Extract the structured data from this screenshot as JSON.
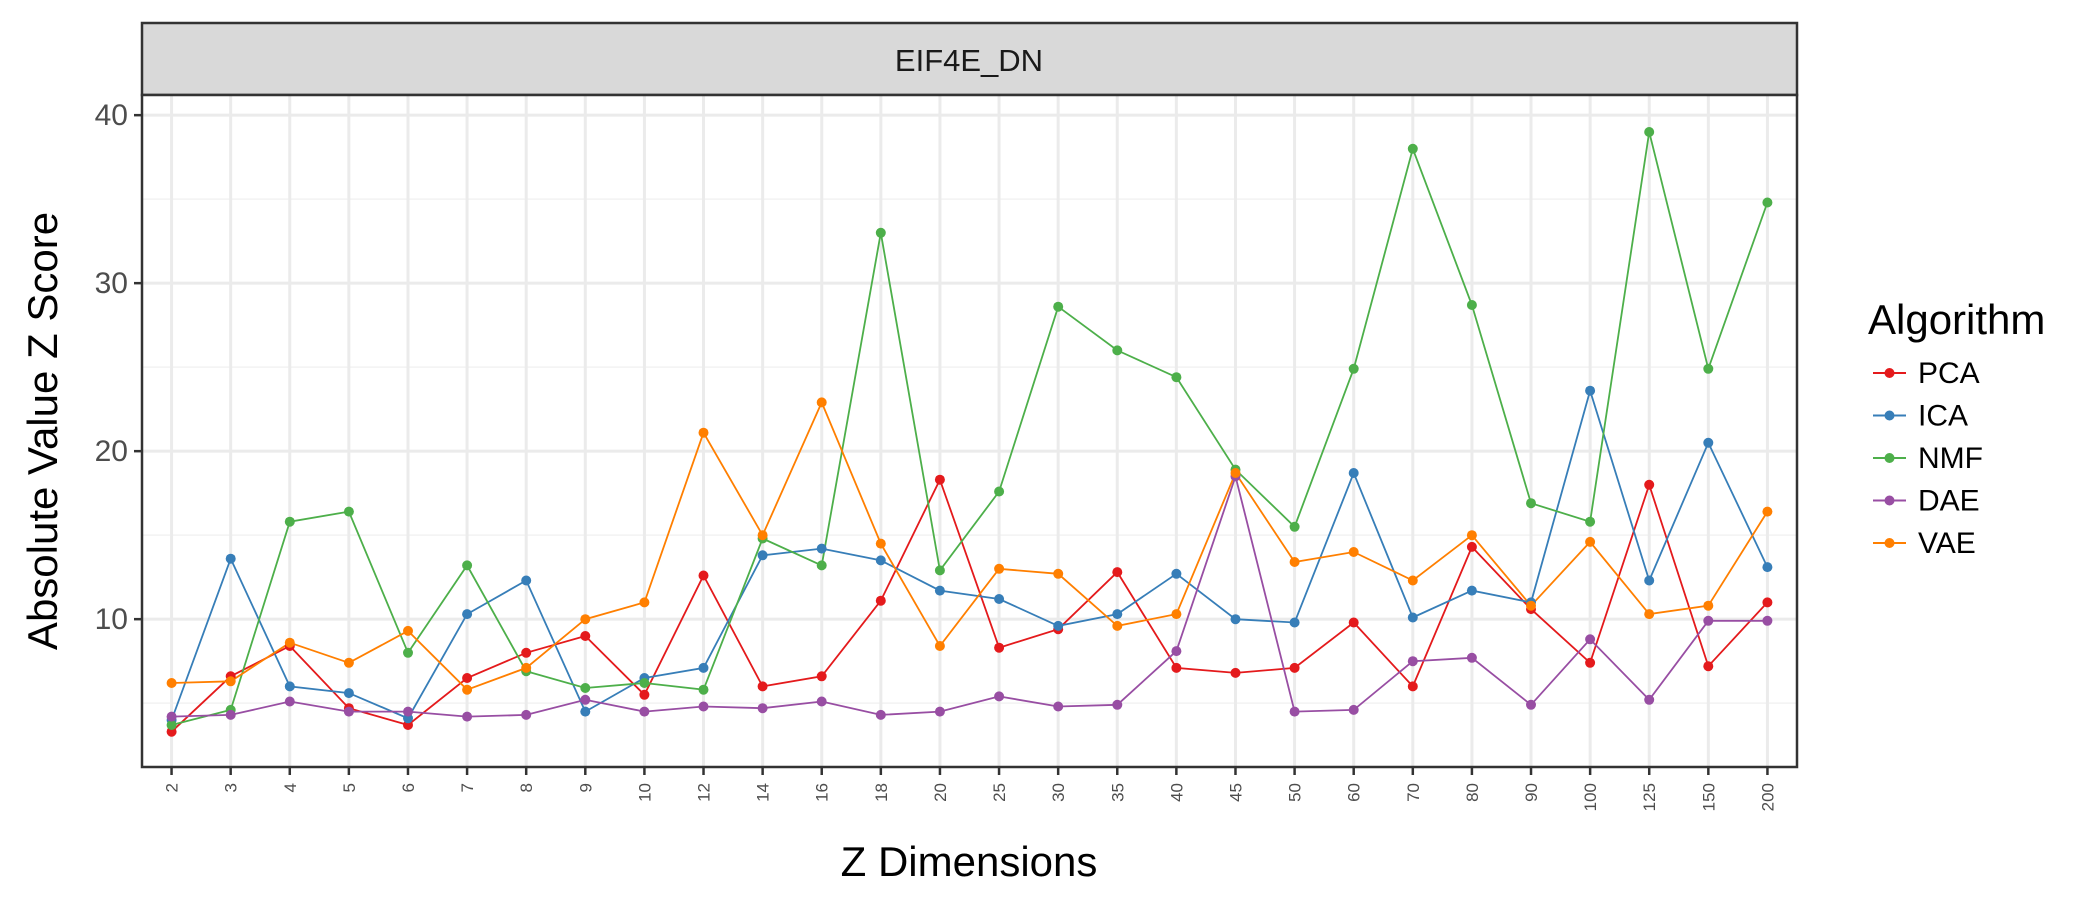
{
  "chart_data": {
    "type": "line",
    "facet_title": "EIF4E_DN",
    "xlabel": "Z Dimensions",
    "ylabel": "Absolute Value Z Score",
    "legend_title": "Algorithm",
    "legend_position": "right",
    "grid": true,
    "ylim": [
      1.2,
      41.2
    ],
    "yticks": [
      10,
      20,
      30,
      40
    ],
    "categories": [
      "2",
      "3",
      "4",
      "5",
      "6",
      "7",
      "8",
      "9",
      "10",
      "12",
      "14",
      "16",
      "18",
      "20",
      "25",
      "30",
      "35",
      "40",
      "45",
      "50",
      "60",
      "70",
      "80",
      "90",
      "100",
      "125",
      "150",
      "200"
    ],
    "series": [
      {
        "name": "PCA",
        "color": "#E41A1C",
        "values": [
          3.3,
          6.6,
          8.4,
          4.7,
          3.7,
          6.5,
          8.0,
          9.0,
          5.5,
          12.6,
          6.0,
          6.6,
          11.1,
          18.3,
          8.3,
          9.4,
          12.8,
          7.1,
          6.8,
          7.1,
          9.8,
          6.0,
          14.3,
          10.6,
          7.4,
          18.0,
          7.2,
          11.0
        ]
      },
      {
        "name": "ICA",
        "color": "#377EB8",
        "values": [
          4.0,
          13.6,
          6.0,
          5.6,
          4.1,
          10.3,
          12.3,
          4.5,
          6.5,
          7.1,
          13.8,
          14.2,
          13.5,
          11.7,
          11.2,
          9.6,
          10.3,
          12.7,
          10.0,
          9.8,
          18.7,
          10.1,
          11.7,
          11.0,
          23.6,
          12.3,
          20.5,
          13.1
        ]
      },
      {
        "name": "NMF",
        "color": "#4DAF4A",
        "values": [
          3.7,
          4.6,
          15.8,
          16.4,
          8.0,
          13.2,
          6.9,
          5.9,
          6.2,
          5.8,
          14.8,
          13.2,
          33.0,
          12.9,
          17.6,
          28.6,
          26.0,
          24.4,
          18.9,
          15.5,
          24.9,
          38.0,
          28.7,
          16.9,
          15.8,
          39.0,
          24.9,
          34.8
        ]
      },
      {
        "name": "DAE",
        "color": "#984EA3",
        "values": [
          4.2,
          4.3,
          5.1,
          4.5,
          4.5,
          4.2,
          4.3,
          5.2,
          4.5,
          4.8,
          4.7,
          5.1,
          4.3,
          4.5,
          5.4,
          4.8,
          4.9,
          8.1,
          18.5,
          4.5,
          4.6,
          7.5,
          7.7,
          4.9,
          8.8,
          5.2,
          9.9,
          9.9
        ]
      },
      {
        "name": "VAE",
        "color": "#FF7F00",
        "values": [
          6.2,
          6.3,
          8.6,
          7.4,
          9.3,
          5.8,
          7.1,
          10.0,
          11.0,
          21.1,
          15.0,
          22.9,
          14.5,
          8.4,
          13.0,
          12.7,
          9.6,
          10.3,
          18.7,
          13.4,
          14.0,
          12.3,
          15.0,
          10.8,
          14.6,
          10.3,
          10.8,
          16.4
        ]
      }
    ]
  }
}
